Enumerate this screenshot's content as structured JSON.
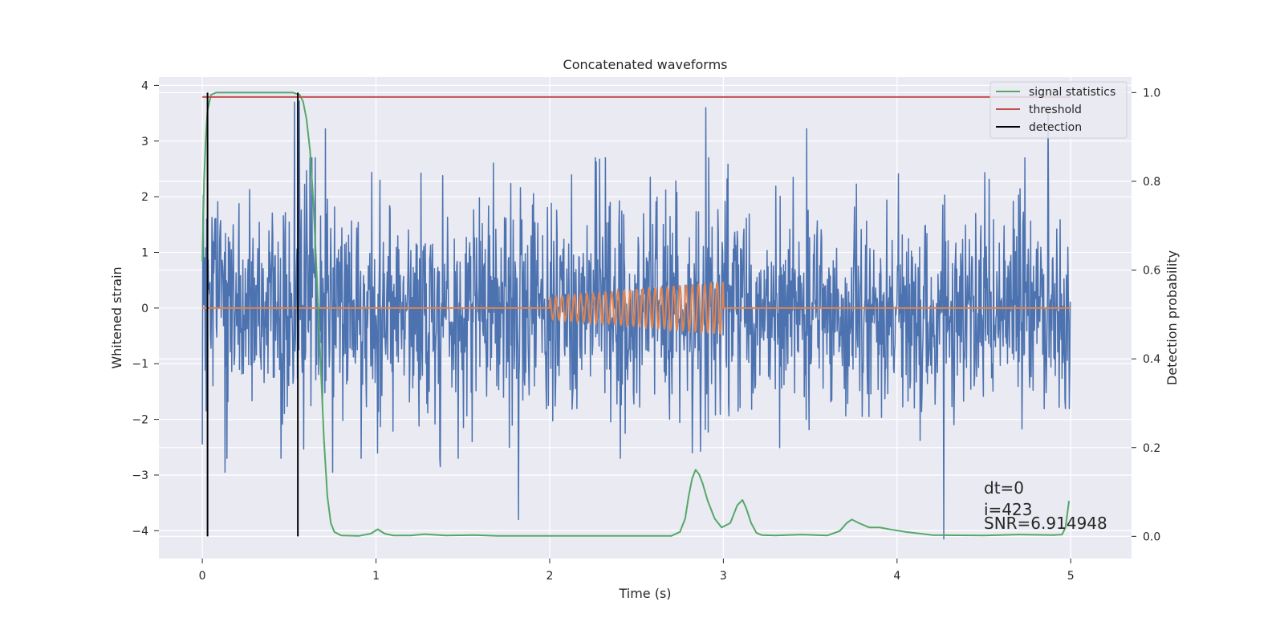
{
  "chart_data": {
    "type": "line",
    "title": "Concatenated waveforms",
    "xlabel": "Time (s)",
    "ylabel": "Whitened strain",
    "ylabel_right": "Detection probability",
    "xlim": [
      -0.25,
      5.35
    ],
    "ylim": [
      -4.5,
      4.15
    ],
    "ylim_right": [
      -0.05,
      1.035
    ],
    "xticks": [
      0,
      1,
      2,
      3,
      4,
      5
    ],
    "yticks": [
      -4,
      -3,
      -2,
      -1,
      0,
      1,
      2,
      3,
      4
    ],
    "yticks_right": [
      0.0,
      0.2,
      0.4,
      0.6,
      0.8,
      1.0
    ],
    "xtick_labels": [
      "0",
      "1",
      "2",
      "3",
      "4",
      "5"
    ],
    "ytick_labels": [
      "−4",
      "−3",
      "−2",
      "−1",
      "0",
      "1",
      "2",
      "3",
      "4"
    ],
    "ytick_right_labels": [
      "0.0",
      "0.2",
      "0.4",
      "0.6",
      "0.8",
      "1.0"
    ],
    "grid": true,
    "legend_position": "top-right",
    "colors": {
      "strain": "#4c72b0",
      "template": "#dd8452",
      "signal_statistics": "#55a868",
      "threshold": "#c44e52",
      "detection": "#000000",
      "background": "#eaeaf2",
      "grid": "#ffffff"
    },
    "series": [
      {
        "name": "signal statistics",
        "axis": "right",
        "color": "#55a868",
        "x": [
          0.0,
          0.01,
          0.02,
          0.03,
          0.05,
          0.08,
          0.15,
          0.3,
          0.45,
          0.52,
          0.56,
          0.58,
          0.6,
          0.62,
          0.64,
          0.66,
          0.68,
          0.7,
          0.72,
          0.74,
          0.76,
          0.8,
          0.9,
          0.97,
          1.01,
          1.05,
          1.1,
          1.2,
          1.28,
          1.4,
          1.57,
          1.7,
          2.0,
          2.5,
          2.7,
          2.75,
          2.78,
          2.8,
          2.82,
          2.84,
          2.86,
          2.88,
          2.91,
          2.95,
          2.99,
          3.04,
          3.08,
          3.11,
          3.13,
          3.16,
          3.19,
          3.22,
          3.3,
          3.45,
          3.6,
          3.67,
          3.71,
          3.74,
          3.78,
          3.84,
          3.9,
          3.97,
          4.05,
          4.2,
          4.5,
          4.7,
          4.9,
          4.95,
          4.97,
          4.99
        ],
        "y": [
          0.62,
          0.8,
          0.9,
          0.96,
          0.995,
          1.0,
          1.0,
          1.0,
          1.0,
          1.0,
          0.995,
          0.98,
          0.94,
          0.87,
          0.75,
          0.58,
          0.4,
          0.22,
          0.09,
          0.03,
          0.01,
          0.002,
          0.001,
          0.006,
          0.016,
          0.006,
          0.002,
          0.002,
          0.005,
          0.002,
          0.003,
          0.001,
          0.001,
          0.001,
          0.001,
          0.01,
          0.04,
          0.09,
          0.13,
          0.15,
          0.14,
          0.12,
          0.08,
          0.04,
          0.02,
          0.03,
          0.07,
          0.082,
          0.065,
          0.03,
          0.008,
          0.003,
          0.002,
          0.004,
          0.002,
          0.012,
          0.03,
          0.038,
          0.03,
          0.02,
          0.02,
          0.015,
          0.01,
          0.003,
          0.002,
          0.004,
          0.003,
          0.004,
          0.02,
          0.08
        ]
      },
      {
        "name": "threshold",
        "axis": "right",
        "color": "#c44e52",
        "x": [
          0.0,
          5.0
        ],
        "y": [
          0.99,
          0.99
        ]
      },
      {
        "name": "detection",
        "axis": "right",
        "color": "#000000",
        "x": [
          0.03,
          0.55
        ],
        "y_range": [
          0.0,
          1.0
        ]
      }
    ],
    "strain": {
      "x_range": [
        0.0,
        5.0
      ],
      "typical_amplitude": 1.0,
      "outliers": [
        {
          "x": 0.0,
          "y": -2.45
        },
        {
          "x": 0.13,
          "y": -2.95
        },
        {
          "x": 0.53,
          "y": 3.7
        },
        {
          "x": 0.56,
          "y": 3.72
        },
        {
          "x": 0.71,
          "y": 3.22
        },
        {
          "x": 0.75,
          "y": -2.95
        },
        {
          "x": 1.37,
          "y": -2.85
        },
        {
          "x": 1.82,
          "y": -3.8
        },
        {
          "x": 2.82,
          "y": -2.6
        },
        {
          "x": 2.9,
          "y": 3.6
        },
        {
          "x": 3.48,
          "y": 3.22
        },
        {
          "x": 4.27,
          "y": -4.15
        },
        {
          "x": 4.87,
          "y": 3.55
        }
      ]
    },
    "template": {
      "color": "#dd8452",
      "x_range": [
        2.0,
        3.0
      ],
      "amplitude_start": 0.2,
      "amplitude_end": 0.48,
      "cycles": 28
    },
    "legend": [
      "signal statistics",
      "threshold",
      "detection"
    ],
    "annotations": [
      "dt=0",
      "i=423",
      "SNR=6.914948"
    ]
  }
}
